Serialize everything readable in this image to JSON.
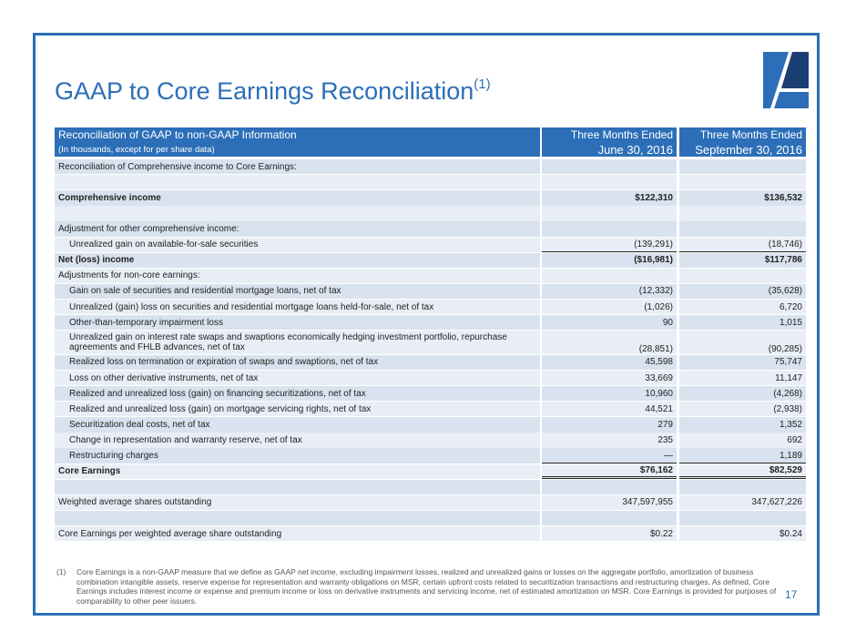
{
  "header": {
    "title": "GAAP to Core Earnings Reconciliation",
    "superscript": "(1)"
  },
  "table": {
    "columns": [
      [
        "Reconciliation of GAAP to non-GAAP Information",
        "(In thousands, except for per share data)"
      ],
      [
        "Three Months Ended",
        "June 30, 2016"
      ],
      [
        "Three Months Ended",
        "September 30, 2016"
      ]
    ],
    "rows": [
      {
        "label": "Reconciliation of Comprehensive income to Core Earnings:"
      },
      {
        "label": "Comprehensive income",
        "values": [
          "$122,310",
          "$136,532"
        ]
      },
      {
        "label": "Adjustment for other comprehensive income:"
      },
      {
        "label": "Unrealized gain on available-for-sale securities",
        "values": [
          "(139,291)",
          "(18,746)"
        ]
      },
      {
        "label": "Net (loss) income",
        "values": [
          "($16,981)",
          "$117,786"
        ]
      },
      {
        "label": "Adjustments for non-core earnings:"
      },
      {
        "label": "Gain on sale of securities and residential mortgage loans, net of tax",
        "values": [
          "(12,332)",
          "(35,628)"
        ]
      },
      {
        "label": "Unrealized (gain) loss on securities and residential mortgage loans held-for-sale, net of tax",
        "values": [
          "(1,026)",
          "6,720"
        ]
      },
      {
        "label": "Other-than-temporary impairment loss",
        "values": [
          "90",
          "1,015"
        ]
      },
      {
        "label": "Unrealized gain on interest rate swaps and swaptions economically hedging investment portfolio, repurchase agreements and FHLB advances, net of tax",
        "values": [
          "(28,851)",
          "(90,285)"
        ]
      },
      {
        "label": "Realized loss on termination or expiration of swaps and swaptions, net of tax",
        "values": [
          "45,598",
          "75,747"
        ]
      },
      {
        "label": "Loss on other derivative instruments, net of tax",
        "values": [
          "33,669",
          "11,147"
        ]
      },
      {
        "label": "Realized and unrealized loss (gain) on financing securitizations, net of tax",
        "values": [
          "10,960",
          "(4,268)"
        ]
      },
      {
        "label": "Realized and unrealized loss (gain) on mortgage servicing rights, net of tax",
        "values": [
          "44,521",
          "(2,938)"
        ]
      },
      {
        "label": "Securitization deal costs, net of tax",
        "values": [
          "279",
          "1,352"
        ]
      },
      {
        "label": "Change in representation and warranty reserve, net of tax",
        "values": [
          "235",
          "692"
        ]
      },
      {
        "label": "Restructuring charges",
        "values": [
          "—",
          "1,189"
        ]
      },
      {
        "label": "Core Earnings",
        "values": [
          "$76,162",
          "$82,529"
        ]
      },
      {
        "label": "Weighted average shares outstanding",
        "values": [
          "347,597,955",
          "347,627,226"
        ]
      },
      {
        "label": "Core Earnings per weighted average share outstanding",
        "values": [
          "$0.22",
          "$0.24"
        ]
      }
    ]
  },
  "footnote": {
    "marker": "(1)",
    "text": "Core Earnings is a non-GAAP measure that we define as GAAP net income, excluding impairment losses, realized and unrealized gains or losses on the aggregate portfolio, amortization of business combination intangible assets, reserve expense for representation and warranty obligations on MSR, certain upfront costs related to securitization transactions and restructuring charges.  As defined, Core Earnings includes interest income or expense and premium income or loss on derivative instruments and servicing income, net of estimated amortization on MSR. Core Earnings is provided for purposes of comparability to other peer issuers."
  },
  "page_number": "17"
}
